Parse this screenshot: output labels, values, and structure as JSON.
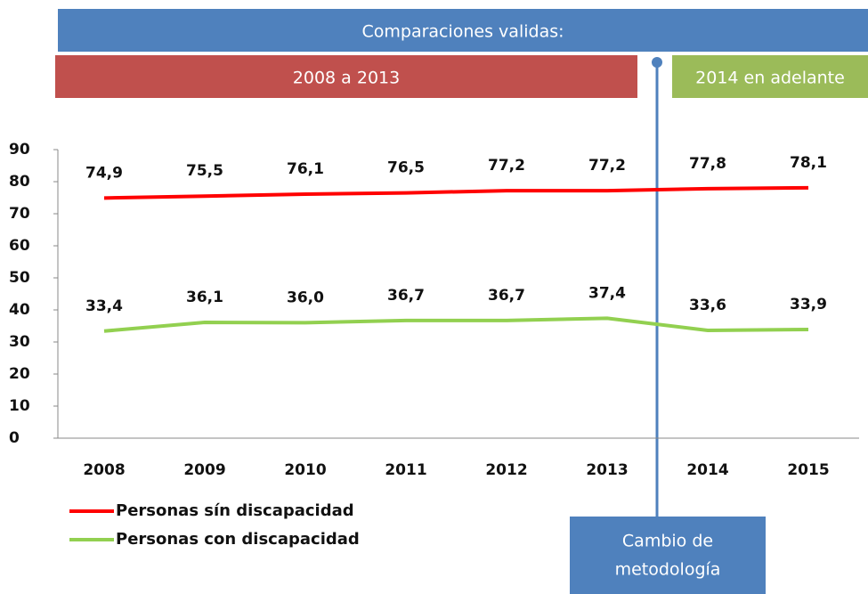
{
  "chart_data": {
    "type": "line",
    "categories": [
      "2008",
      "2009",
      "2010",
      "2011",
      "2012",
      "2013",
      "2014",
      "2015"
    ],
    "series": [
      {
        "name": "Personas sín discapacidad",
        "color": "#ff0000",
        "values": [
          74.9,
          75.5,
          76.1,
          76.5,
          77.2,
          77.2,
          77.8,
          78.1
        ],
        "value_labels": [
          "74,9",
          "75,5",
          "76,1",
          "76,5",
          "77,2",
          "77,2",
          "77,8",
          "78,1"
        ]
      },
      {
        "name": "Personas con discapacidad",
        "color": "#92d050",
        "values": [
          33.4,
          36.1,
          36.0,
          36.7,
          36.7,
          37.4,
          33.6,
          33.9
        ],
        "value_labels": [
          "33,4",
          "36,1",
          "36,0",
          "36,7",
          "36,7",
          "37,4",
          "33,6",
          "33,9"
        ]
      }
    ],
    "ylim": [
      0,
      90
    ],
    "yticks": [
      0,
      10,
      20,
      30,
      40,
      50,
      60,
      70,
      80,
      90
    ],
    "annotations": [
      "Comparaciones validas:",
      "2008 a 2013",
      "2014 en adelante",
      "Cambio de",
      "metodología"
    ]
  }
}
